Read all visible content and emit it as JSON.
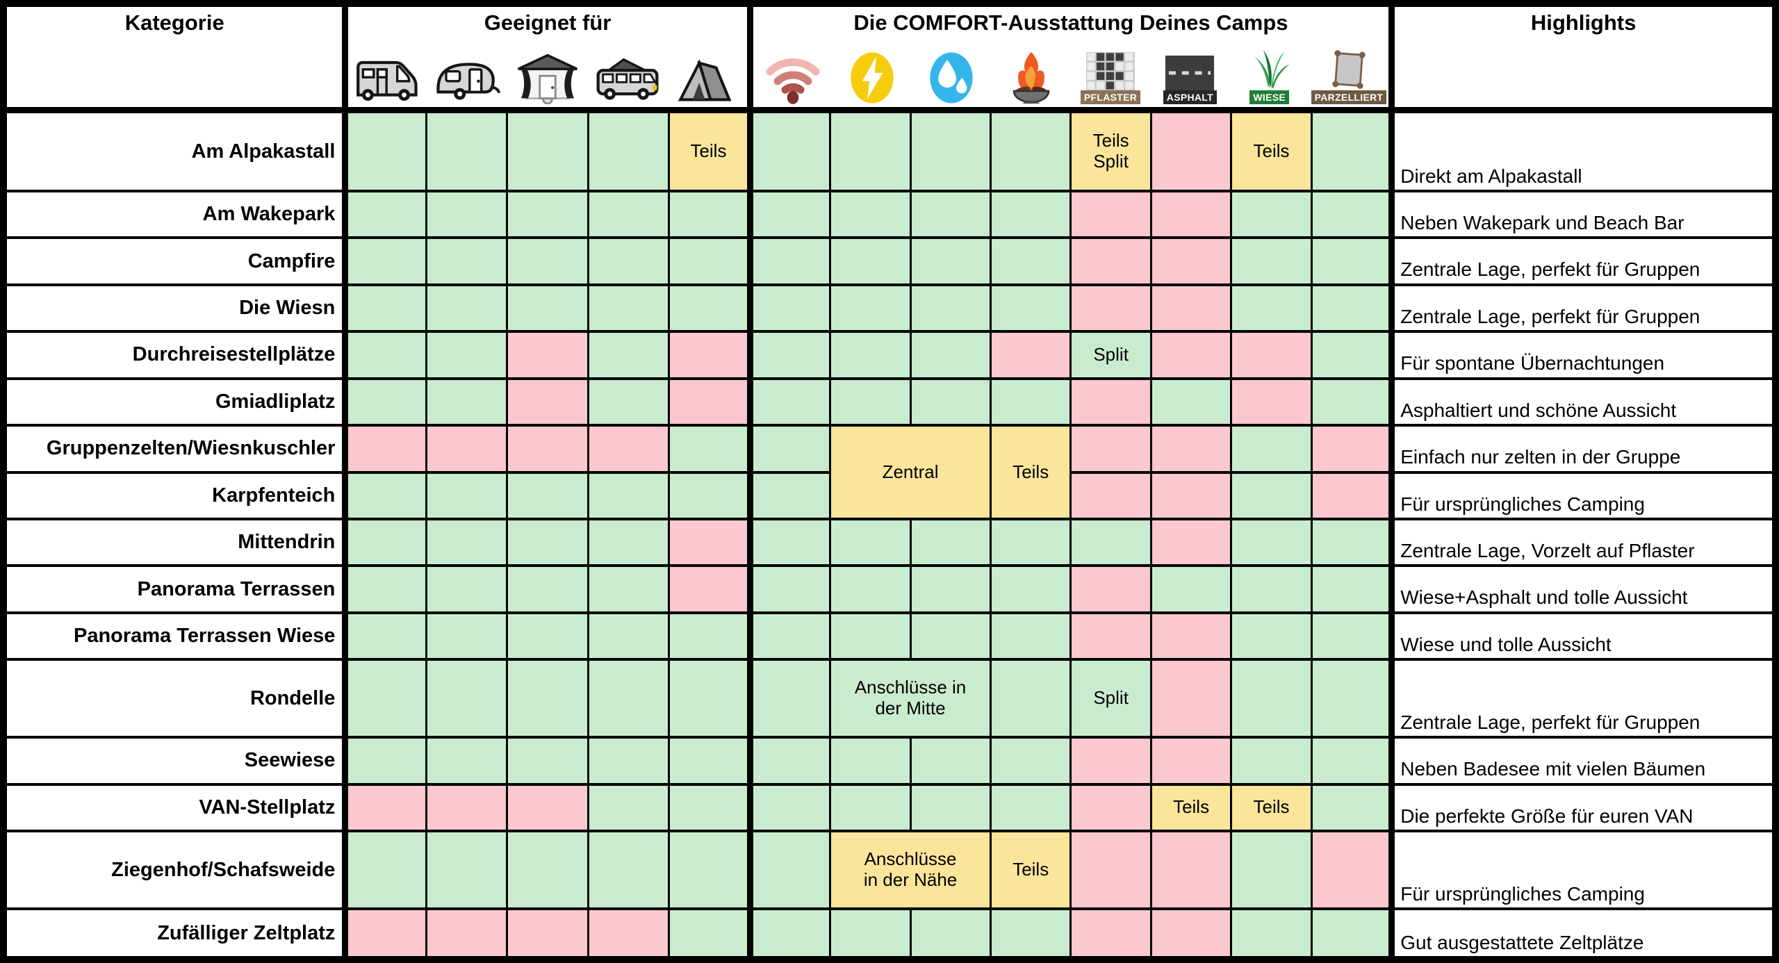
{
  "chart_data": {
    "type": "table",
    "header": {
      "kategorie": "Kategorie",
      "geeignet_fuer": "Geeignet für",
      "comfort": "Die COMFORT-Ausstattung Deines Camps",
      "highlights": "Highlights"
    },
    "suitable_icons": [
      {
        "icon": "motorhome-icon"
      },
      {
        "icon": "caravan-icon"
      },
      {
        "icon": "caravan-awning-icon"
      },
      {
        "icon": "campervan-icon"
      },
      {
        "icon": "tent-icon"
      }
    ],
    "comfort_icons": [
      {
        "icon": "wifi-icon",
        "label": ""
      },
      {
        "icon": "lightning-icon",
        "label": ""
      },
      {
        "icon": "water-drops-icon",
        "label": ""
      },
      {
        "icon": "fire-bowl-icon",
        "label": ""
      },
      {
        "icon": "paving-icon",
        "label": "PFLASTER"
      },
      {
        "icon": "asphalt-road-icon",
        "label": "ASPHALT"
      },
      {
        "icon": "grass-icon",
        "label": "WIESE"
      },
      {
        "icon": "parcel-icon",
        "label": "PARZELLIERT"
      }
    ],
    "colors": {
      "yes": "#c9ecce",
      "no": "#fbc8cf",
      "partial": "#fbe59b",
      "grid": "#000000",
      "background": "#ffffff"
    },
    "cell_states": {
      "y": "green",
      "n": "pink",
      "p": "yellow"
    },
    "rows": [
      {
        "kategorie": "Am Alpakastall",
        "cells": [
          "y",
          "y",
          "y",
          "y",
          {
            "c": "p",
            "t": "Teils"
          },
          "y",
          "y",
          "y",
          "y",
          {
            "c": "p",
            "t": "Teils\nSplit"
          },
          "n",
          {
            "c": "p",
            "t": "Teils"
          },
          "y"
        ],
        "highlight": "Direkt am Alpakastall"
      },
      {
        "kategorie": "Am Wakepark",
        "cells": [
          "y",
          "y",
          "y",
          "y",
          "y",
          "y",
          "y",
          "y",
          "y",
          "n",
          "n",
          "y",
          "y"
        ],
        "highlight": "Neben Wakepark und Beach Bar"
      },
      {
        "kategorie": "Campfire",
        "cells": [
          "y",
          "y",
          "y",
          "y",
          "y",
          "y",
          "y",
          "y",
          "y",
          "n",
          "n",
          "y",
          "y"
        ],
        "highlight": "Zentrale Lage, perfekt für Gruppen"
      },
      {
        "kategorie": "Die Wiesn",
        "cells": [
          "y",
          "y",
          "y",
          "y",
          "y",
          "y",
          "y",
          "y",
          "y",
          "n",
          "n",
          "y",
          "y"
        ],
        "highlight": "Zentrale Lage, perfekt für Gruppen"
      },
      {
        "kategorie": "Durchreisestellplätze",
        "cells": [
          "y",
          "y",
          "n",
          "y",
          "n",
          "y",
          "y",
          "y",
          "n",
          {
            "c": "y",
            "t": "Split"
          },
          "n",
          "n",
          "y"
        ],
        "highlight": "Für spontane Übernachtungen"
      },
      {
        "kategorie": "Gmiadliplatz",
        "cells": [
          "y",
          "y",
          "n",
          "y",
          "n",
          "y",
          "y",
          "y",
          "y",
          "n",
          "y",
          "n",
          "y"
        ],
        "highlight": "Asphaltiert und schöne Aussicht"
      },
      {
        "kategorie": "Gruppenzelten/Wiesnkuschler",
        "cells": [
          "n",
          "n",
          "n",
          "n",
          "y",
          "y",
          {
            "c": "p",
            "t": "Zentral",
            "cs": 2,
            "rs": 2
          },
          "x",
          {
            "c": "p",
            "t": "Teils",
            "rs": 2
          },
          "n",
          "n",
          "y",
          "n"
        ],
        "highlight": "Einfach nur zelten in der Gruppe"
      },
      {
        "kategorie": "Karpfenteich",
        "cells": [
          "y",
          "y",
          "y",
          "y",
          "y",
          "y",
          "x",
          "x",
          "x",
          "n",
          "n",
          "y",
          "n"
        ],
        "highlight": "Für ursprüngliches Camping"
      },
      {
        "kategorie": "Mittendrin",
        "cells": [
          "y",
          "y",
          "y",
          "y",
          "n",
          "y",
          "y",
          "y",
          "y",
          "y",
          "n",
          "y",
          "y"
        ],
        "highlight": "Zentrale Lage, Vorzelt auf Pflaster"
      },
      {
        "kategorie": "Panorama Terrassen",
        "cells": [
          "y",
          "y",
          "y",
          "y",
          "n",
          "y",
          "y",
          "y",
          "y",
          "n",
          "y",
          "y",
          "y"
        ],
        "highlight": "Wiese+Asphalt und tolle Aussicht"
      },
      {
        "kategorie": "Panorama Terrassen Wiese",
        "cells": [
          "y",
          "y",
          "y",
          "y",
          "y",
          "y",
          "y",
          "y",
          "y",
          "n",
          "n",
          "y",
          "y"
        ],
        "highlight": "Wiese und tolle Aussicht"
      },
      {
        "kategorie": "Rondelle",
        "cells": [
          "y",
          "y",
          "y",
          "y",
          "y",
          "y",
          {
            "c": "y",
            "t": "Anschlüsse in\nder Mitte",
            "cs": 2
          },
          "x",
          "y",
          {
            "c": "y",
            "t": "Split"
          },
          "n",
          "y",
          "y"
        ],
        "highlight": "Zentrale Lage, perfekt für Gruppen"
      },
      {
        "kategorie": "Seewiese",
        "cells": [
          "y",
          "y",
          "y",
          "y",
          "y",
          "y",
          "y",
          "y",
          "y",
          "n",
          "n",
          "y",
          "y"
        ],
        "highlight": "Neben Badesee mit vielen Bäumen"
      },
      {
        "kategorie": "VAN-Stellplatz",
        "cells": [
          "n",
          "n",
          "n",
          "y",
          "y",
          "y",
          "y",
          "y",
          "y",
          "n",
          {
            "c": "p",
            "t": "Teils"
          },
          {
            "c": "p",
            "t": "Teils"
          },
          "y"
        ],
        "highlight": "Die perfekte Größe für euren VAN"
      },
      {
        "kategorie": "Ziegenhof/Schafsweide",
        "cells": [
          "y",
          "y",
          "y",
          "y",
          "y",
          "y",
          {
            "c": "p",
            "t": "Anschlüsse\nin der Nähe",
            "cs": 2
          },
          "x",
          {
            "c": "p",
            "t": "Teils"
          },
          "n",
          "n",
          "y",
          "n"
        ],
        "highlight": "Für ursprüngliches Camping"
      },
      {
        "kategorie": "Zufälliger Zeltplatz",
        "cells": [
          "n",
          "n",
          "n",
          "n",
          "y",
          "y",
          "y",
          "y",
          "y",
          "n",
          "n",
          "y",
          "y"
        ],
        "highlight": "Gut ausgestattete Zeltplätze"
      }
    ]
  }
}
